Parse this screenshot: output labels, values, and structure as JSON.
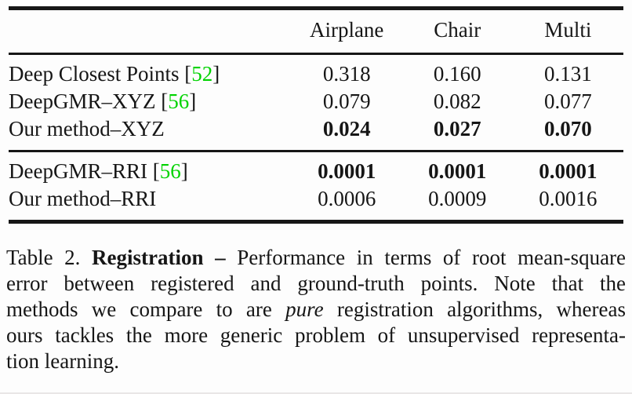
{
  "colors": {
    "text": "#161616",
    "citation_green": "#00d300",
    "background": "#fdfdfd"
  },
  "table": {
    "columns": {
      "airplane": "Airplane",
      "chair": "Chair",
      "multi": "Multi"
    },
    "sections": [
      {
        "rows": [
          {
            "label_prefix": "Deep Closest Points [",
            "citation": "52",
            "label_suffix": "]",
            "values": [
              "0.318",
              "0.160",
              "0.131"
            ],
            "bold_values": false
          },
          {
            "label_prefix": "DeepGMR–XYZ [",
            "citation": "56",
            "label_suffix": "]",
            "values": [
              "0.079",
              "0.082",
              "0.077"
            ],
            "bold_values": false
          },
          {
            "label_prefix": "Our method–XYZ",
            "citation": "",
            "label_suffix": "",
            "values": [
              "0.024",
              "0.027",
              "0.070"
            ],
            "bold_values": true
          }
        ]
      },
      {
        "rows": [
          {
            "label_prefix": "DeepGMR–RRI [",
            "citation": "56",
            "label_suffix": "]",
            "values": [
              "0.0001",
              "0.0001",
              "0.0001"
            ],
            "bold_values": true
          },
          {
            "label_prefix": "Our method–RRI",
            "citation": "",
            "label_suffix": "",
            "values": [
              "0.0006",
              "0.0009",
              "0.0016"
            ],
            "bold_values": false
          }
        ]
      }
    ]
  },
  "caption": {
    "line1_prefix": "Table 2.",
    "line1_bold": "Registration –",
    "line1_rest": "Performance in terms of root mean-square",
    "line2": "error between registered and ground-truth points. Note that the",
    "line3_pre": "methods we compare to are",
    "line3_italic": "pure",
    "line3_post": "registration algorithms, whereas",
    "line4": "ours tackles the more generic problem of unsupervised representa-",
    "line5": "tion learning."
  }
}
